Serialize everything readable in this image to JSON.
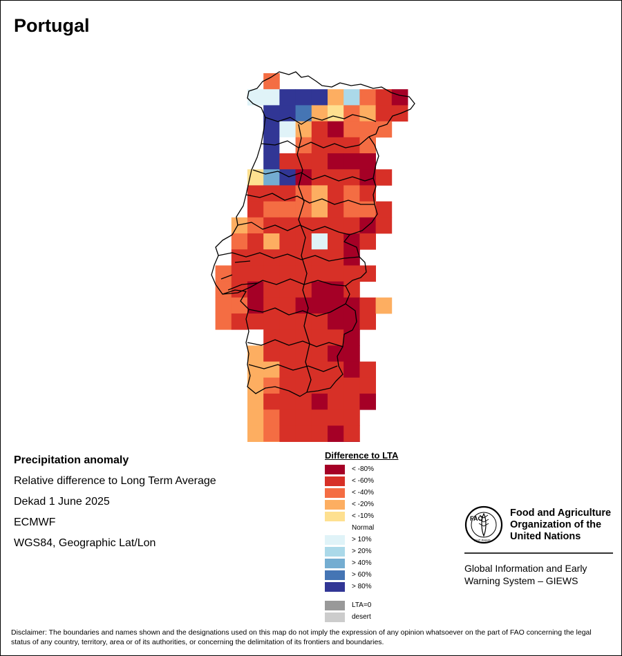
{
  "title": "Portugal",
  "info": {
    "heading": "Precipitation anomaly",
    "lines": [
      "Relative difference to Long Term Average",
      "Dekad 1 June 2025",
      "ECMWF",
      "WGS84, Geographic Lat/Lon"
    ]
  },
  "legend": {
    "title": "Difference to LTA",
    "classes": [
      {
        "key": "a",
        "label": "< -80%",
        "color": "#a50026"
      },
      {
        "key": "b",
        "label": "< -60%",
        "color": "#d73027"
      },
      {
        "key": "c",
        "label": "< -40%",
        "color": "#f46d43"
      },
      {
        "key": "d",
        "label": "< -20%",
        "color": "#fdae61"
      },
      {
        "key": "e",
        "label": "< -10%",
        "color": "#fee090"
      },
      {
        "key": "n",
        "label": "Normal",
        "color": "#ffffff"
      },
      {
        "key": "f",
        "label": "> 10%",
        "color": "#e0f3f8"
      },
      {
        "key": "g",
        "label": "> 20%",
        "color": "#abd9e9"
      },
      {
        "key": "h",
        "label": "> 40%",
        "color": "#74add1"
      },
      {
        "key": "i",
        "label": "> 60%",
        "color": "#4575b4"
      },
      {
        "key": "j",
        "label": "> 80%",
        "color": "#313695"
      }
    ],
    "extra": [
      {
        "label": "LTA=0",
        "color": "#999999"
      },
      {
        "label": "desert",
        "color": "#cccccc"
      }
    ]
  },
  "grid": {
    "origin_row": 0,
    "rows": [
      {
        "col": 1,
        "cells": "c"
      },
      {
        "col": 0,
        "cells": "ffjjjdgcba"
      },
      {
        "col": 1,
        "cells": "jjidecdbb"
      },
      {
        "col": 1,
        "cells": "jfdbaccc"
      },
      {
        "col": 1,
        "cells": "jncbbbc"
      },
      {
        "col": 1,
        "cells": "jbbbaaa"
      },
      {
        "col": 0,
        "cells": "ehjabbbab"
      },
      {
        "col": 0,
        "cells": "bbbcdbcb"
      },
      {
        "col": 0,
        "cells": "bcccdbccb"
      },
      {
        "col": -1,
        "cells": "dcbbbbbbab"
      },
      {
        "col": -1,
        "cells": "cbdbbfbab"
      },
      {
        "col": -1,
        "cells": "bbbbbbba"
      },
      {
        "col": -2,
        "cells": "cbbbbbbbbb"
      },
      {
        "col": -2,
        "cells": "cbabbbaab"
      },
      {
        "col": -2,
        "cells": "ccabbaaaabd"
      },
      {
        "col": -2,
        "cells": "cbbbbbbaab"
      },
      {
        "col": 0,
        "cells": "nbbbbba"
      },
      {
        "col": 0,
        "cells": "dbbbbaa"
      },
      {
        "col": 0,
        "cells": "ddbbbbab"
      },
      {
        "col": 0,
        "cells": "dcbbbbbb"
      },
      {
        "col": 0,
        "cells": "dbbbabba"
      },
      {
        "col": 0,
        "cells": "dcbbbbb"
      },
      {
        "col": 0,
        "cells": "dcbbbab"
      },
      {
        "col": 0,
        "cells": "ddbbbaa"
      },
      {
        "col": 0,
        "cells": "bcbbbab"
      },
      {
        "col": 0,
        "cells": "bbaba"
      }
    ]
  },
  "fao": {
    "logo_text": "FAO",
    "logo_motto": "FIAT PANIS",
    "name": [
      "Food and Agriculture",
      "Organization of the",
      "United Nations"
    ],
    "giews": [
      "Global Information and Early",
      "Warning System – GIEWS"
    ]
  },
  "disclaimer": "Disclaimer: The boundaries and names shown and the designations used on this map do not imply the expression of any opinion whatsoever on the part of FAO concerning the legal status of any country, territory, area or of its authorities, or concerning the delimitation of its frontiers and boundaries."
}
